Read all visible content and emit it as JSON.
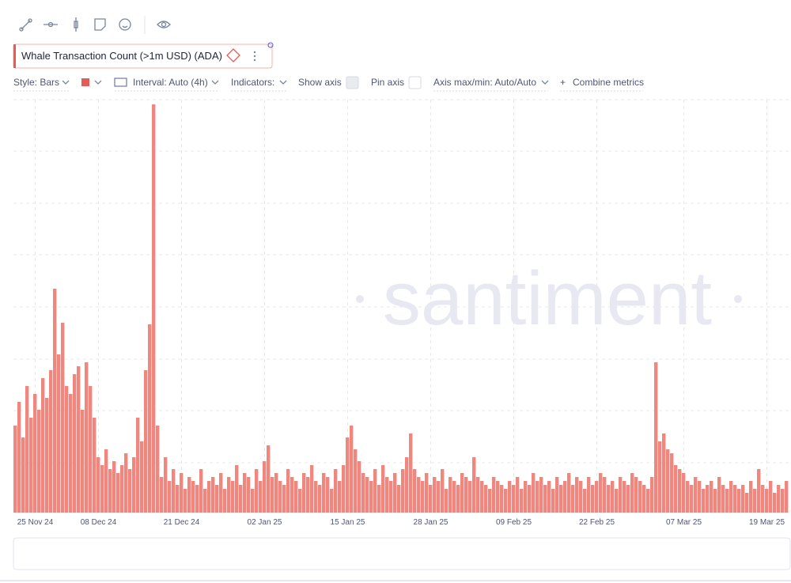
{
  "toolbar": {
    "metric": "Whale Transaction Count (>1m USD) (ADA)",
    "style": "Style: Bars",
    "interval": "Interval: Auto (4h)",
    "indicators": "Indicators:",
    "show_axis": "Show axis",
    "pin_axis": "Pin axis",
    "axis_minmax": "Axis max/min: Auto/Auto",
    "combine": "Combine metrics"
  },
  "chart_data": {
    "type": "bar",
    "watermark": "santiment",
    "color": "#f0877f",
    "values": [
      110,
      140,
      95,
      160,
      120,
      150,
      130,
      170,
      145,
      180,
      283,
      200,
      240,
      160,
      150,
      175,
      185,
      130,
      190,
      160,
      120,
      70,
      60,
      80,
      55,
      65,
      50,
      60,
      75,
      55,
      70,
      120,
      90,
      180,
      238,
      516,
      110,
      45,
      70,
      40,
      55,
      35,
      50,
      30,
      45,
      40,
      35,
      55,
      30,
      40,
      45,
      35,
      50,
      30,
      45,
      40,
      60,
      35,
      50,
      45,
      30,
      55,
      40,
      65,
      85,
      45,
      50,
      40,
      35,
      55,
      45,
      40,
      30,
      50,
      45,
      60,
      40,
      35,
      50,
      45,
      30,
      55,
      40,
      60,
      95,
      110,
      80,
      65,
      50,
      45,
      40,
      55,
      35,
      60,
      45,
      40,
      50,
      35,
      55,
      70,
      100,
      55,
      45,
      40,
      50,
      35,
      45,
      40,
      55,
      30,
      45,
      40,
      35,
      50,
      45,
      40,
      70,
      45,
      40,
      35,
      30,
      45,
      40,
      35,
      30,
      40,
      35,
      45,
      30,
      40,
      35,
      50,
      40,
      45,
      35,
      40,
      30,
      45,
      35,
      40,
      50,
      35,
      45,
      40,
      30,
      45,
      35,
      40,
      50,
      45,
      35,
      40,
      30,
      45,
      40,
      35,
      50,
      45,
      40,
      35,
      30,
      45,
      190,
      90,
      100,
      80,
      75,
      60,
      55,
      50,
      40,
      35,
      45,
      40,
      30,
      35,
      40,
      30,
      45,
      35,
      30,
      40,
      35,
      30,
      35,
      25,
      40,
      30,
      55,
      35,
      30,
      40,
      25,
      35,
      30,
      40
    ],
    "xticks": [
      {
        "value": 5,
        "label": "25 Nov 24"
      },
      {
        "value": 21,
        "label": "08 Dec 24"
      },
      {
        "value": 42,
        "label": "21 Dec 24"
      },
      {
        "value": 63,
        "label": "02 Jan 25"
      },
      {
        "value": 84,
        "label": "15 Jan 25"
      },
      {
        "value": 105,
        "label": "28 Jan 25"
      },
      {
        "value": 126,
        "label": "09 Feb 25"
      },
      {
        "value": 147,
        "label": "22 Feb 25"
      },
      {
        "value": 169,
        "label": "07 Mar 25"
      },
      {
        "value": 190,
        "label": "19 Mar 25"
      }
    ]
  }
}
